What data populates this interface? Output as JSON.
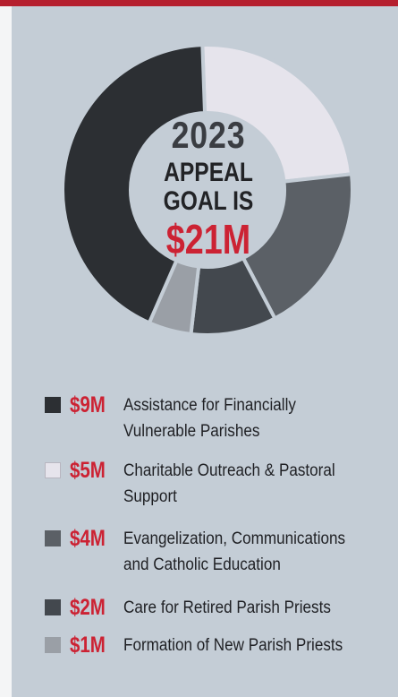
{
  "colors": {
    "accent_red": "#cc2233",
    "panel_background": "#c4cdd6",
    "top_bar": "#b51f2e"
  },
  "center": {
    "year": "2023",
    "line1": "APPEAL",
    "line2": "GOAL IS",
    "goal": "$21M"
  },
  "chart_data": {
    "type": "pie",
    "donut": true,
    "total": 21,
    "unit": "$M",
    "slices": [
      {
        "label": "Assistance for Financially Vulnerable Parishes",
        "amount_label": "$9M",
        "value": 9,
        "color": "#2c2f33"
      },
      {
        "label": "Charitable Outreach & Pastoral Support",
        "amount_label": "$5M",
        "value": 5,
        "color": "#e6e4ec"
      },
      {
        "label": "Evangelization, Communications and Catholic Education",
        "amount_label": "$4M",
        "value": 4,
        "color": "#5b6066"
      },
      {
        "label": "Care for Retired Parish Priests",
        "amount_label": "$2M",
        "value": 2,
        "color": "#43484e"
      },
      {
        "label": "Formation of New Parish Priests",
        "amount_label": "$1M",
        "value": 1,
        "color": "#9a9fa6"
      }
    ],
    "start_slice_order": [
      1,
      2,
      3,
      4,
      0
    ]
  },
  "legend": [
    {
      "amount": "$9M",
      "line1": "Assistance for Financially",
      "line2": "Vulnerable Parishes"
    },
    {
      "amount": "$5M",
      "line1": "Charitable Outreach & Pastoral",
      "line2": "Support"
    },
    {
      "amount": "$4M",
      "line1": "Evangelization, Communications",
      "line2": "and Catholic Education"
    },
    {
      "amount": "$2M",
      "line1": "Care for Retired Parish Priests",
      "line2": ""
    },
    {
      "amount": "$1M",
      "line1": "Formation of New Parish Priests",
      "line2": ""
    }
  ]
}
